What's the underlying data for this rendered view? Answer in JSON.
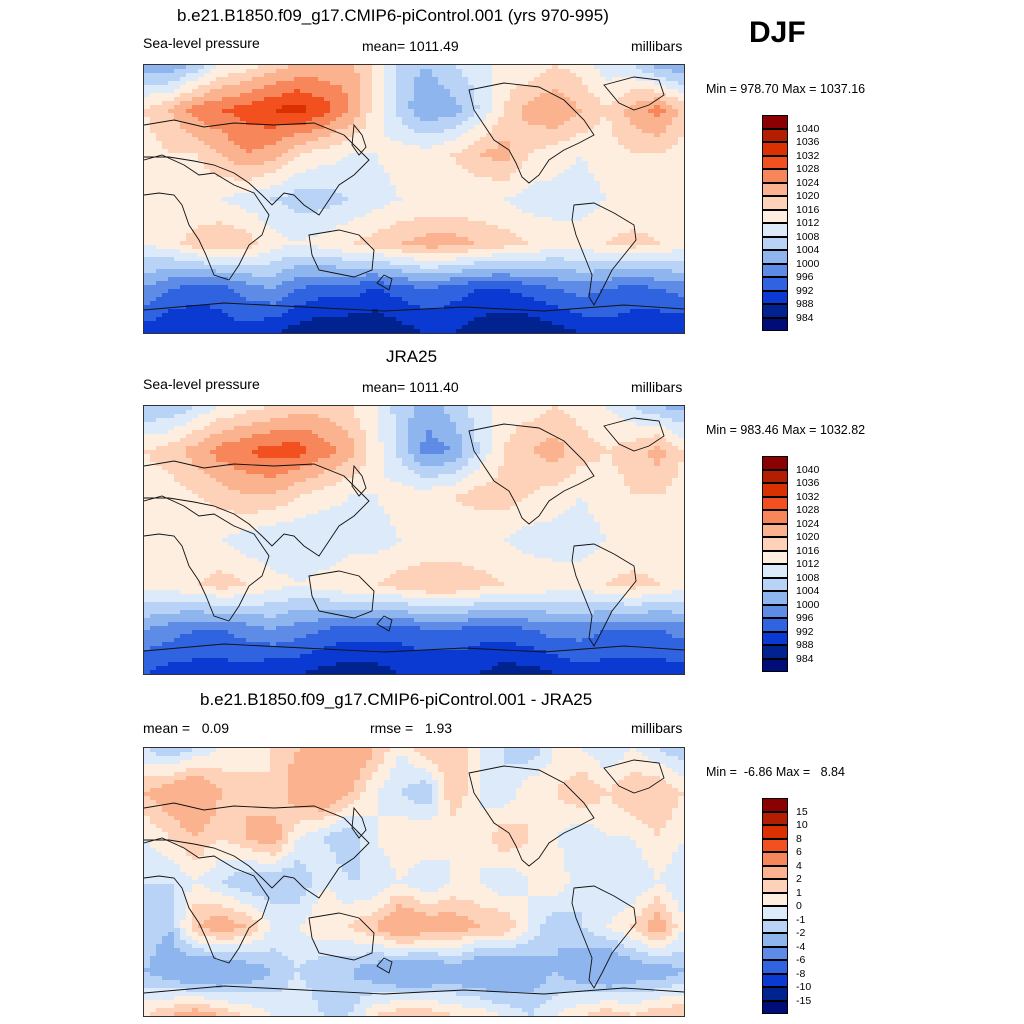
{
  "season": "DJF",
  "panels": [
    {
      "title": "b.e21.B1850.f09_g17.CMIP6-piControl.001 (yrs 970-995)",
      "left_label": "Sea-level pressure",
      "center_label": "mean= 1011.49",
      "right_label": "millibars",
      "minmax": "Min = 978.70 Max = 1037.16",
      "legend": {
        "labels": [
          "1040",
          "1036",
          "1032",
          "1028",
          "1024",
          "1020",
          "1016",
          "1012",
          "1008",
          "1004",
          "1000",
          "996",
          "992",
          "988",
          "984"
        ],
        "colors": [
          "#8b0000",
          "#b31d00",
          "#db3000",
          "#f2511f",
          "#f7865a",
          "#fbb28e",
          "#fdd2b8",
          "#fdeedf",
          "#dceaf9",
          "#b8d3f5",
          "#8fb5ee",
          "#5e8be6",
          "#3063e0",
          "#0a3ad1",
          "#00238f",
          "#000c78"
        ]
      },
      "sample_values": [
        [
          1002,
          1000,
          1005,
          1012,
          1014,
          1018,
          1020,
          1021,
          1022,
          1014,
          1006,
          1004,
          1008,
          1010,
          1014,
          1012,
          1016,
          1014,
          1010,
          1008,
          1002,
          1000
        ],
        [
          1016,
          1020,
          1026,
          1028,
          1030,
          1032,
          1034,
          1030,
          1024,
          1014,
          1006,
          1000,
          1002,
          1008,
          1016,
          1022,
          1024,
          1020,
          1016,
          1022,
          1026,
          1018
        ],
        [
          1014,
          1016,
          1016,
          1020,
          1024,
          1022,
          1016,
          1014,
          1012,
          1012,
          1014,
          1014,
          1016,
          1020,
          1022,
          1016,
          1014,
          1012,
          1014,
          1016,
          1016,
          1014
        ],
        [
          1012,
          1012,
          1012,
          1012,
          1010,
          1008,
          1006,
          1006,
          1008,
          1010,
          1012,
          1012,
          1012,
          1012,
          1012,
          1010,
          1010,
          1010,
          1012,
          1012,
          1012,
          1012
        ],
        [
          1012,
          1014,
          1018,
          1020,
          1018,
          1014,
          1012,
          1014,
          1016,
          1018,
          1020,
          1022,
          1022,
          1020,
          1018,
          1016,
          1014,
          1014,
          1016,
          1018,
          1016,
          1014
        ],
        [
          1000,
          996,
          994,
          994,
          998,
          1000,
          996,
          994,
          994,
          992,
          994,
          996,
          994,
          992,
          992,
          994,
          996,
          998,
          996,
          994,
          996,
          998
        ],
        [
          990,
          988,
          988,
          990,
          990,
          988,
          986,
          984,
          984,
          984,
          986,
          988,
          988,
          986,
          984,
          984,
          986,
          988,
          990,
          990,
          988,
          988
        ]
      ]
    },
    {
      "title": "JRA25",
      "left_label": "Sea-level pressure",
      "center_label": "mean= 1011.40",
      "right_label": "millibars",
      "minmax": "Min = 983.46 Max = 1032.82",
      "legend": {
        "labels": [
          "1040",
          "1036",
          "1032",
          "1028",
          "1024",
          "1020",
          "1016",
          "1012",
          "1008",
          "1004",
          "1000",
          "996",
          "992",
          "988",
          "984"
        ],
        "colors": [
          "#8b0000",
          "#b31d00",
          "#db3000",
          "#f2511f",
          "#f7865a",
          "#fbb28e",
          "#fdd2b8",
          "#fdeedf",
          "#dceaf9",
          "#b8d3f5",
          "#8fb5ee",
          "#5e8be6",
          "#3063e0",
          "#0a3ad1",
          "#00238f",
          "#000c78"
        ]
      },
      "sample_values": [
        [
          1004,
          1004,
          1008,
          1012,
          1014,
          1016,
          1018,
          1018,
          1016,
          1012,
          1006,
          1002,
          1006,
          1010,
          1014,
          1014,
          1016,
          1014,
          1012,
          1008,
          1004,
          1002
        ],
        [
          1016,
          1018,
          1022,
          1026,
          1028,
          1030,
          1030,
          1026,
          1022,
          1014,
          1006,
          998,
          1000,
          1008,
          1016,
          1020,
          1022,
          1018,
          1016,
          1018,
          1022,
          1016
        ],
        [
          1014,
          1014,
          1016,
          1018,
          1020,
          1020,
          1016,
          1014,
          1012,
          1012,
          1014,
          1014,
          1016,
          1018,
          1018,
          1016,
          1014,
          1012,
          1014,
          1016,
          1016,
          1014
        ],
        [
          1012,
          1012,
          1012,
          1012,
          1010,
          1008,
          1008,
          1008,
          1010,
          1010,
          1012,
          1012,
          1012,
          1012,
          1012,
          1010,
          1010,
          1010,
          1012,
          1012,
          1012,
          1012
        ],
        [
          1014,
          1014,
          1016,
          1018,
          1016,
          1014,
          1012,
          1014,
          1016,
          1016,
          1018,
          1020,
          1020,
          1018,
          1016,
          1016,
          1014,
          1014,
          1016,
          1018,
          1016,
          1014
        ],
        [
          1000,
          998,
          996,
          996,
          998,
          1000,
          998,
          996,
          994,
          994,
          994,
          996,
          996,
          994,
          994,
          996,
          998,
          998,
          996,
          996,
          996,
          998
        ],
        [
          992,
          990,
          990,
          990,
          990,
          988,
          988,
          986,
          986,
          986,
          988,
          988,
          988,
          988,
          986,
          986,
          988,
          990,
          990,
          990,
          990,
          990
        ]
      ]
    },
    {
      "title": "b.e21.B1850.f09_g17.CMIP6-piControl.001 - JRA25",
      "left_label": "mean =   0.09",
      "center_label": "rmse =   1.93",
      "right_label": "millibars",
      "minmax": "Min =  -6.86 Max =   8.84",
      "legend": {
        "labels": [
          "15",
          "10",
          "8",
          "6",
          "4",
          "2",
          "1",
          "0",
          "-1",
          "-2",
          "-4",
          "-6",
          "-8",
          "-10",
          "-15"
        ],
        "colors": [
          "#8b0000",
          "#b31d00",
          "#db3000",
          "#f2511f",
          "#f7865a",
          "#fbb28e",
          "#fdd2b8",
          "#fdeedf",
          "#dceaf9",
          "#b8d3f5",
          "#8fb5ee",
          "#5e8be6",
          "#3063e0",
          "#0a3ad1",
          "#00238f",
          "#000c78"
        ]
      },
      "sample_values": [
        [
          -1,
          -2,
          -1,
          0,
          0,
          1,
          2,
          3,
          4,
          2,
          0,
          2,
          2,
          0,
          -1,
          -2,
          0,
          0,
          -1,
          0,
          -1,
          -2
        ],
        [
          2,
          3,
          4,
          2,
          2,
          1,
          3,
          4,
          2,
          0,
          -1,
          -2,
          2,
          0,
          -1,
          1,
          1,
          2,
          1,
          2,
          2,
          1
        ],
        [
          0,
          1,
          2,
          1,
          2,
          3,
          0,
          -1,
          -2,
          0,
          1,
          1,
          0,
          0,
          2,
          1,
          0,
          -1,
          0,
          0,
          1,
          0
        ],
        [
          -1,
          -1,
          0,
          -1,
          -2,
          -2,
          -2,
          0,
          -1,
          -1,
          0,
          -1,
          0,
          0,
          -1,
          0,
          1,
          -1,
          -1,
          -1,
          0,
          -1
        ],
        [
          -1,
          -2,
          2,
          3,
          2,
          0,
          0,
          1,
          1,
          2,
          4,
          3,
          3,
          2,
          2,
          0,
          -2,
          -1,
          0,
          1,
          3,
          0
        ],
        [
          -2,
          -3,
          -4,
          -4,
          -3,
          -2,
          -1,
          -2,
          -2,
          -3,
          -4,
          -4,
          -3,
          -4,
          -4,
          -3,
          -2,
          -3,
          -4,
          -3,
          -3,
          -2
        ],
        [
          1,
          2,
          3,
          2,
          1,
          0,
          0,
          -1,
          -1,
          1,
          2,
          2,
          1,
          1,
          0,
          -1,
          0,
          1,
          2,
          1,
          2,
          2
        ]
      ]
    }
  ]
}
